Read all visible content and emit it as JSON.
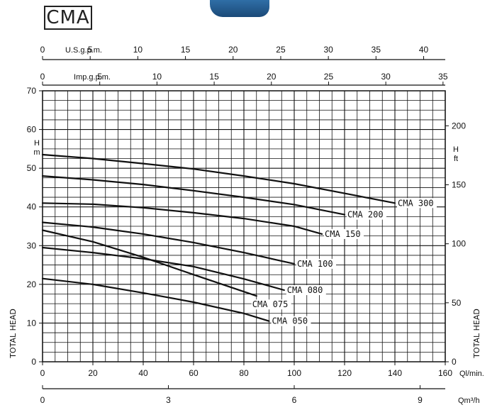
{
  "title": "CMA",
  "chart_data": {
    "type": "line",
    "title": "CMA",
    "xlabel": "Ql/min.",
    "ylabel": "TOTAL HEAD",
    "xlim": [
      0,
      160
    ],
    "ylim": [
      0,
      70
    ],
    "grid": true,
    "left_axis": {
      "unit": "m",
      "label_top": "H",
      "ticks": [
        "0",
        "10",
        "20",
        "30",
        "40",
        "50",
        "60",
        "70"
      ]
    },
    "right_axis": {
      "unit": "ft",
      "label_top": "H",
      "label": "TOTAL HEAD",
      "ticks": [
        "0",
        "50",
        "100",
        "150",
        "200"
      ]
    },
    "bottom_axis": {
      "unit": "Ql/min.",
      "ticks": [
        "0",
        "20",
        "40",
        "60",
        "80",
        "100",
        "120",
        "140",
        "160"
      ]
    },
    "bottom_axis_2": {
      "unit": "Qm³/h",
      "ticks": [
        "0",
        "3",
        "6",
        "9"
      ]
    },
    "top_axis_us": {
      "unit": "U.S.g.p.m.",
      "ticks": [
        "0",
        "5",
        "10",
        "15",
        "20",
        "25",
        "30",
        "35",
        "40"
      ]
    },
    "top_axis_imp": {
      "unit": "Imp.g.p.m.",
      "ticks": [
        "0",
        "5",
        "10",
        "15",
        "20",
        "25",
        "30",
        "35"
      ]
    },
    "series": [
      {
        "name": "CMA 300",
        "x": [
          0,
          20,
          40,
          60,
          80,
          100,
          120,
          140
        ],
        "y": [
          53.5,
          52.5,
          51.2,
          49.8,
          48.0,
          46.0,
          43.5,
          41.0
        ]
      },
      {
        "name": "CMA 200",
        "x": [
          0,
          20,
          40,
          60,
          80,
          100,
          120
        ],
        "y": [
          48.0,
          47.0,
          45.8,
          44.2,
          42.5,
          40.6,
          38.0
        ]
      },
      {
        "name": "CMA 150",
        "x": [
          0,
          20,
          40,
          60,
          80,
          100,
          111
        ],
        "y": [
          41.0,
          40.7,
          39.8,
          38.5,
          37.0,
          35.0,
          33.0
        ]
      },
      {
        "name": "CMA 100",
        "x": [
          0,
          20,
          40,
          60,
          80,
          100
        ],
        "y": [
          36.0,
          34.8,
          33.0,
          30.8,
          28.2,
          25.3
        ]
      },
      {
        "name": "CMA 080",
        "x": [
          0,
          20,
          40,
          60,
          80,
          96
        ],
        "y": [
          29.5,
          28.2,
          26.6,
          24.6,
          21.4,
          18.5
        ]
      },
      {
        "name": "CMA 075",
        "x": [
          0,
          20,
          40,
          60,
          85
        ],
        "y": [
          34.0,
          31.0,
          27.0,
          22.5,
          17.0
        ]
      },
      {
        "name": "CMA 050",
        "x": [
          0,
          20,
          40,
          60,
          80,
          90
        ],
        "y": [
          21.5,
          20.0,
          17.8,
          15.4,
          12.5,
          10.5
        ]
      }
    ]
  }
}
